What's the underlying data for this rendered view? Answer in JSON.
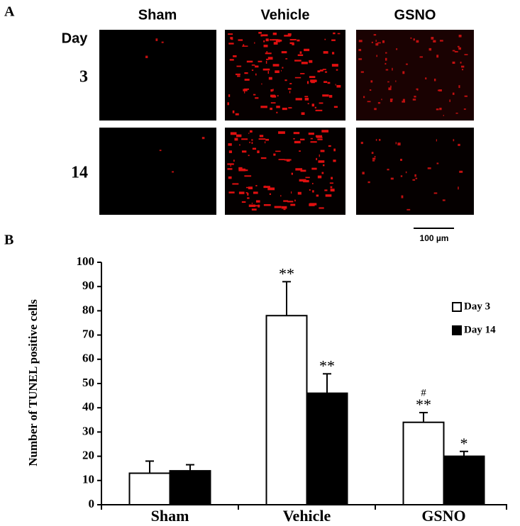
{
  "panel_a": {
    "label": "A",
    "columns": [
      "Sham",
      "Vehicle",
      "GSNO"
    ],
    "row_header": "Day",
    "rows": [
      "3",
      "14"
    ],
    "scale_bar": "100 µm"
  },
  "chart_data": {
    "type": "bar",
    "panel_label": "B",
    "ylabel": "Number of TUNEL positive cells",
    "categories": [
      "Sham",
      "Vehicle",
      "GSNO"
    ],
    "series": [
      {
        "name": "Day 3",
        "color": "#ffffff",
        "values": [
          13,
          78,
          34
        ],
        "errors": [
          5,
          14,
          4
        ],
        "significance": [
          null,
          "**",
          "**"
        ],
        "hash": [
          null,
          null,
          "#"
        ]
      },
      {
        "name": "Day 14",
        "color": "#000000",
        "values": [
          14,
          46,
          20
        ],
        "errors": [
          2.5,
          8,
          2
        ],
        "significance": [
          null,
          "**",
          "*"
        ]
      }
    ],
    "ylim": [
      0,
      100
    ],
    "yticks": [
      0,
      10,
      20,
      30,
      40,
      50,
      60,
      70,
      80,
      90,
      100
    ],
    "grid": false,
    "legend": "upper right"
  }
}
